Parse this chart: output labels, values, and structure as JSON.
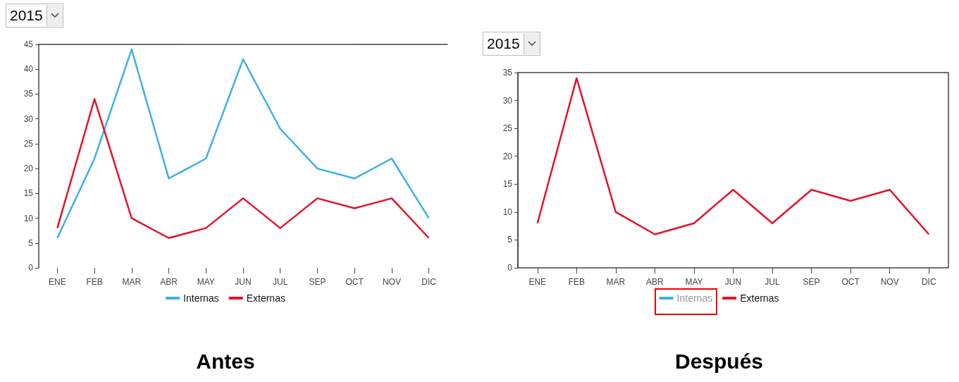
{
  "chart_data": [
    {
      "type": "line",
      "title": "Antes",
      "annotations": [
        "2015"
      ],
      "categories": [
        "ENE",
        "FEB",
        "MAR",
        "ABR",
        "MAY",
        "JUN",
        "JUL",
        "SEP",
        "OCT",
        "NOV",
        "DIC"
      ],
      "series": [
        {
          "name": "Internas",
          "color": "#3fb0e3",
          "values": [
            6,
            22,
            44,
            18,
            22,
            42,
            28,
            20,
            18,
            22,
            10
          ]
        },
        {
          "name": "Externas",
          "color": "#e3132a",
          "values": [
            8,
            34,
            10,
            6,
            8,
            14,
            8,
            14,
            12,
            14,
            6
          ]
        }
      ],
      "ylim": [
        0,
        45
      ],
      "yticks": [
        0,
        5,
        10,
        15,
        20,
        25,
        30,
        35,
        40,
        45
      ],
      "grid": false,
      "legend": "bottom",
      "marker": "none",
      "line_style": "solid"
    },
    {
      "type": "line",
      "title": "Después",
      "annotations": [
        "2015"
      ],
      "categories": [
        "ENE",
        "FEB",
        "MAR",
        "ABR",
        "MAY",
        "JUN",
        "JUL",
        "SEP",
        "OCT",
        "NOV",
        "DIC"
      ],
      "series": [
        {
          "name": "Internas",
          "color": "#3fb0e3",
          "values": [
            null,
            null,
            null,
            null,
            null,
            null,
            null,
            null,
            null,
            null,
            null
          ]
        },
        {
          "name": "Externas",
          "color": "#e3132a",
          "values": [
            8,
            34,
            10,
            6,
            8,
            14,
            8,
            14,
            12,
            14,
            6
          ]
        }
      ],
      "ylim": [
        0,
        35
      ],
      "yticks": [
        0,
        5,
        10,
        15,
        20,
        25,
        30,
        35
      ],
      "grid": false,
      "legend": "bottom",
      "marker": "none",
      "line_style": "solid"
    }
  ]
}
